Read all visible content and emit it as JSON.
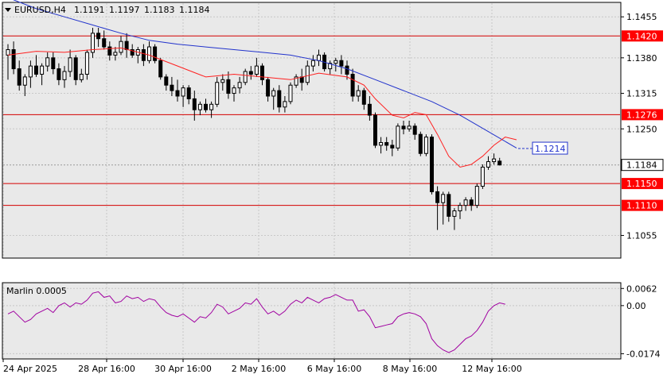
{
  "header": {
    "symbol": "EURUSD,H4",
    "open": "1.1191",
    "high": "1.1197",
    "low": "1.1183",
    "close": "1.1184"
  },
  "colors": {
    "background": "#e9e9e9",
    "grid": "#c8c8c8",
    "bull": "#ffffff",
    "bear": "#000000",
    "level": "#d40000",
    "ma_fast": "#ff2020",
    "ma_slow": "#2233cc",
    "marlin": "#a000a0",
    "price_tag_bg": "#ffffff",
    "level_tag_bg": "#ff0000"
  },
  "chart_data": [
    {
      "type": "candlestick",
      "ylim": [
        1.1015,
        1.148
      ],
      "y_ticks": [
        "1.1455",
        "1.1380",
        "1.1315",
        "1.1250",
        "1.1055"
      ],
      "x_ticks": [
        "24 Apr 2025",
        "28 Apr 16:00",
        "30 Apr 16:00",
        "2 May 16:00",
        "6 May 16:00",
        "8 May 16:00",
        "12 May 16:00"
      ],
      "levels": [
        {
          "value": 1.142,
          "label": "1.1420"
        },
        {
          "value": 1.1276,
          "label": "1.1276"
        },
        {
          "value": 1.115,
          "label": "1.1150"
        },
        {
          "value": 1.111,
          "label": "1.1110"
        }
      ],
      "current_price": {
        "value": 1.1184,
        "label": "1.1184"
      },
      "target": {
        "value": 1.1214,
        "label": "1.1214"
      },
      "ohlc": [
        [
          1.1385,
          1.1405,
          1.134,
          1.1395
        ],
        [
          1.1395,
          1.141,
          1.135,
          1.136
        ],
        [
          1.136,
          1.1375,
          1.132,
          1.133
        ],
        [
          1.133,
          1.135,
          1.131,
          1.1345
        ],
        [
          1.1345,
          1.1375,
          1.1325,
          1.1365
        ],
        [
          1.1365,
          1.1385,
          1.1345,
          1.135
        ],
        [
          1.135,
          1.137,
          1.133,
          1.1365
        ],
        [
          1.1365,
          1.139,
          1.1355,
          1.138
        ],
        [
          1.138,
          1.139,
          1.135,
          1.136
        ],
        [
          1.136,
          1.137,
          1.133,
          1.134
        ],
        [
          1.134,
          1.1365,
          1.1325,
          1.1355
        ],
        [
          1.1355,
          1.1395,
          1.1345,
          1.138
        ],
        [
          1.138,
          1.1385,
          1.133,
          1.134
        ],
        [
          1.134,
          1.136,
          1.1335,
          1.135
        ],
        [
          1.135,
          1.1395,
          1.134,
          1.139
        ],
        [
          1.139,
          1.1435,
          1.138,
          1.1425
        ],
        [
          1.1425,
          1.1435,
          1.14,
          1.1415
        ],
        [
          1.1415,
          1.143,
          1.1395,
          1.14
        ],
        [
          1.14,
          1.141,
          1.1375,
          1.1385
        ],
        [
          1.1385,
          1.14,
          1.1375,
          1.139
        ],
        [
          1.139,
          1.142,
          1.1385,
          1.141
        ],
        [
          1.141,
          1.1425,
          1.138,
          1.1395
        ],
        [
          1.1395,
          1.1405,
          1.138,
          1.1385
        ],
        [
          1.1385,
          1.14,
          1.137,
          1.1395
        ],
        [
          1.1395,
          1.1405,
          1.1365,
          1.1375
        ],
        [
          1.1375,
          1.141,
          1.137,
          1.14
        ],
        [
          1.14,
          1.1405,
          1.137,
          1.1375
        ],
        [
          1.1375,
          1.138,
          1.134,
          1.1345
        ],
        [
          1.1345,
          1.135,
          1.132,
          1.133
        ],
        [
          1.133,
          1.1345,
          1.131,
          1.132
        ],
        [
          1.132,
          1.134,
          1.13,
          1.131
        ],
        [
          1.131,
          1.133,
          1.129,
          1.1325
        ],
        [
          1.1325,
          1.133,
          1.1295,
          1.1305
        ],
        [
          1.1305,
          1.132,
          1.1265,
          1.1285
        ],
        [
          1.1285,
          1.13,
          1.1275,
          1.1295
        ],
        [
          1.1295,
          1.1305,
          1.128,
          1.1285
        ],
        [
          1.1285,
          1.13,
          1.127,
          1.1295
        ],
        [
          1.1295,
          1.1345,
          1.129,
          1.1335
        ],
        [
          1.1335,
          1.135,
          1.132,
          1.134
        ],
        [
          1.134,
          1.1355,
          1.1305,
          1.1315
        ],
        [
          1.1315,
          1.133,
          1.13,
          1.1325
        ],
        [
          1.1325,
          1.1345,
          1.1315,
          1.1335
        ],
        [
          1.1335,
          1.136,
          1.133,
          1.1355
        ],
        [
          1.1355,
          1.1365,
          1.134,
          1.135
        ],
        [
          1.135,
          1.138,
          1.1345,
          1.1365
        ],
        [
          1.1365,
          1.137,
          1.133,
          1.134
        ],
        [
          1.134,
          1.1345,
          1.13,
          1.131
        ],
        [
          1.131,
          1.1325,
          1.1285,
          1.132
        ],
        [
          1.132,
          1.133,
          1.128,
          1.129
        ],
        [
          1.129,
          1.131,
          1.128,
          1.13
        ],
        [
          1.13,
          1.1335,
          1.1295,
          1.133
        ],
        [
          1.133,
          1.135,
          1.1325,
          1.1345
        ],
        [
          1.1345,
          1.136,
          1.132,
          1.1335
        ],
        [
          1.1335,
          1.1375,
          1.133,
          1.1365
        ],
        [
          1.1365,
          1.1385,
          1.1355,
          1.1375
        ],
        [
          1.1375,
          1.1395,
          1.1365,
          1.1385
        ],
        [
          1.1385,
          1.139,
          1.1355,
          1.136
        ],
        [
          1.136,
          1.1375,
          1.135,
          1.137
        ],
        [
          1.137,
          1.138,
          1.1355,
          1.1375
        ],
        [
          1.1375,
          1.1385,
          1.135,
          1.1365
        ],
        [
          1.1365,
          1.1375,
          1.134,
          1.135
        ],
        [
          1.135,
          1.136,
          1.13,
          1.131
        ],
        [
          1.131,
          1.133,
          1.13,
          1.132
        ],
        [
          1.132,
          1.1325,
          1.1285,
          1.1295
        ],
        [
          1.1295,
          1.131,
          1.1265,
          1.1275
        ],
        [
          1.1275,
          1.128,
          1.1215,
          1.122
        ],
        [
          1.122,
          1.1235,
          1.1205,
          1.1225
        ],
        [
          1.1225,
          1.1235,
          1.121,
          1.122
        ],
        [
          1.122,
          1.123,
          1.12,
          1.1215
        ],
        [
          1.1215,
          1.126,
          1.121,
          1.1255
        ],
        [
          1.1255,
          1.1265,
          1.124,
          1.125
        ],
        [
          1.125,
          1.1265,
          1.1245,
          1.1255
        ],
        [
          1.1255,
          1.126,
          1.123,
          1.124
        ],
        [
          1.124,
          1.1245,
          1.12,
          1.1205
        ],
        [
          1.1205,
          1.124,
          1.12,
          1.1235
        ],
        [
          1.1235,
          1.124,
          1.113,
          1.1135
        ],
        [
          1.1135,
          1.1145,
          1.1065,
          1.1115
        ],
        [
          1.1115,
          1.1135,
          1.1075,
          1.113
        ],
        [
          1.113,
          1.1135,
          1.108,
          1.109
        ],
        [
          1.109,
          1.1105,
          1.1065,
          1.11
        ],
        [
          1.11,
          1.1115,
          1.1085,
          1.111
        ],
        [
          1.111,
          1.1125,
          1.11,
          1.112
        ],
        [
          1.112,
          1.1125,
          1.11,
          1.111
        ],
        [
          1.111,
          1.115,
          1.1105,
          1.1145
        ],
        [
          1.1145,
          1.1185,
          1.114,
          1.118
        ],
        [
          1.118,
          1.12,
          1.1175,
          1.119
        ],
        [
          1.119,
          1.1205,
          1.1185,
          1.1195
        ],
        [
          1.1191,
          1.1197,
          1.1183,
          1.1184
        ]
      ],
      "ma_fast": [
        [
          0,
          1.1385
        ],
        [
          5,
          1.1392
        ],
        [
          10,
          1.139
        ],
        [
          15,
          1.1395
        ],
        [
          20,
          1.1398
        ],
        [
          25,
          1.1385
        ],
        [
          30,
          1.1365
        ],
        [
          35,
          1.1345
        ],
        [
          40,
          1.135
        ],
        [
          45,
          1.1345
        ],
        [
          50,
          1.134
        ],
        [
          55,
          1.1352
        ],
        [
          60,
          1.1345
        ],
        [
          63,
          1.133
        ],
        [
          65,
          1.1305
        ],
        [
          68,
          1.1275
        ],
        [
          70,
          1.127
        ],
        [
          72,
          1.128
        ],
        [
          74,
          1.1276
        ],
        [
          76,
          1.124
        ],
        [
          78,
          1.12
        ],
        [
          80,
          1.118
        ],
        [
          82,
          1.1185
        ],
        [
          84,
          1.12
        ],
        [
          86,
          1.122
        ],
        [
          88,
          1.1235
        ],
        [
          90,
          1.123
        ]
      ],
      "ma_slow": [
        [
          0,
          1.149
        ],
        [
          5,
          1.147
        ],
        [
          10,
          1.1455
        ],
        [
          15,
          1.144
        ],
        [
          20,
          1.1425
        ],
        [
          25,
          1.1412
        ],
        [
          30,
          1.1405
        ],
        [
          35,
          1.14
        ],
        [
          40,
          1.1395
        ],
        [
          45,
          1.139
        ],
        [
          50,
          1.1385
        ],
        [
          55,
          1.1375
        ],
        [
          60,
          1.136
        ],
        [
          65,
          1.134
        ],
        [
          70,
          1.132
        ],
        [
          75,
          1.13
        ],
        [
          80,
          1.1275
        ],
        [
          85,
          1.1245
        ],
        [
          90,
          1.1215
        ]
      ]
    },
    {
      "type": "line",
      "title": "Marlin 0.0005",
      "ylim": [
        -0.019,
        0.008
      ],
      "y_ticks": [
        "0.0062",
        "0.00",
        "-0.0174"
      ],
      "series": [
        {
          "values": [
            -0.003,
            -0.002,
            -0.004,
            -0.006,
            -0.005,
            -0.003,
            -0.002,
            -0.001,
            -0.0025,
            0.0,
            0.001,
            -0.0005,
            0.001,
            0.0005,
            0.002,
            0.0045,
            0.005,
            0.003,
            0.0035,
            0.001,
            0.0015,
            0.0035,
            0.0025,
            0.003,
            0.0015,
            0.0025,
            0.002,
            -0.0005,
            -0.0025,
            -0.0035,
            -0.004,
            -0.003,
            -0.0045,
            -0.006,
            -0.004,
            -0.0045,
            -0.0025,
            0.0005,
            -0.0005,
            -0.003,
            -0.002,
            -0.001,
            0.001,
            0.0005,
            0.0025,
            -0.0005,
            -0.003,
            -0.002,
            -0.0035,
            -0.002,
            0.0005,
            0.002,
            0.001,
            0.003,
            0.002,
            0.001,
            0.0025,
            0.003,
            0.004,
            0.003,
            0.002,
            0.002,
            -0.002,
            -0.0015,
            -0.004,
            -0.008,
            -0.0075,
            -0.007,
            -0.0065,
            -0.004,
            -0.003,
            -0.0025,
            -0.003,
            -0.004,
            -0.0065,
            -0.012,
            -0.0145,
            -0.016,
            -0.017,
            -0.016,
            -0.014,
            -0.012,
            -0.011,
            -0.009,
            -0.006,
            -0.002,
            0.0,
            0.001,
            0.0005
          ]
        }
      ]
    }
  ]
}
